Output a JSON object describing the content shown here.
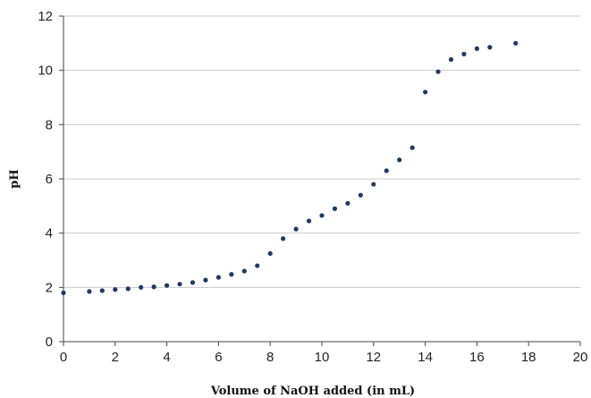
{
  "chart_data": {
    "type": "scatter",
    "title": "",
    "xlabel": "Volume of NaOH added (in mL)",
    "ylabel": "pH",
    "xlim": [
      0,
      20
    ],
    "ylim": [
      0,
      12
    ],
    "x_ticks": [
      "0",
      "2",
      "4",
      "6",
      "8",
      "10",
      "12",
      "14",
      "16",
      "18",
      "20"
    ],
    "y_ticks": [
      "0",
      "2",
      "4",
      "6",
      "8",
      "10",
      "12"
    ],
    "grid": "horizontal",
    "marker_color": "#1f3864",
    "grid_color": "#c8c8c8",
    "x": [
      0,
      1,
      1.5,
      2,
      2.5,
      3,
      3.5,
      4,
      4.5,
      5,
      5.5,
      6,
      6.5,
      7,
      7.5,
      8,
      8.5,
      9,
      9.5,
      10,
      10.5,
      11,
      11.5,
      12,
      12.5,
      13,
      13.5,
      14,
      14.5,
      15,
      15.5,
      16,
      16.5,
      17.5
    ],
    "y": [
      1.8,
      1.85,
      1.88,
      1.92,
      1.95,
      2.0,
      2.02,
      2.07,
      2.12,
      2.18,
      2.27,
      2.37,
      2.48,
      2.6,
      2.8,
      3.25,
      3.8,
      4.15,
      4.45,
      4.65,
      4.9,
      5.1,
      5.4,
      5.8,
      6.3,
      6.7,
      7.15,
      9.2,
      9.95,
      10.4,
      10.6,
      10.8,
      10.85,
      11.0
    ]
  }
}
